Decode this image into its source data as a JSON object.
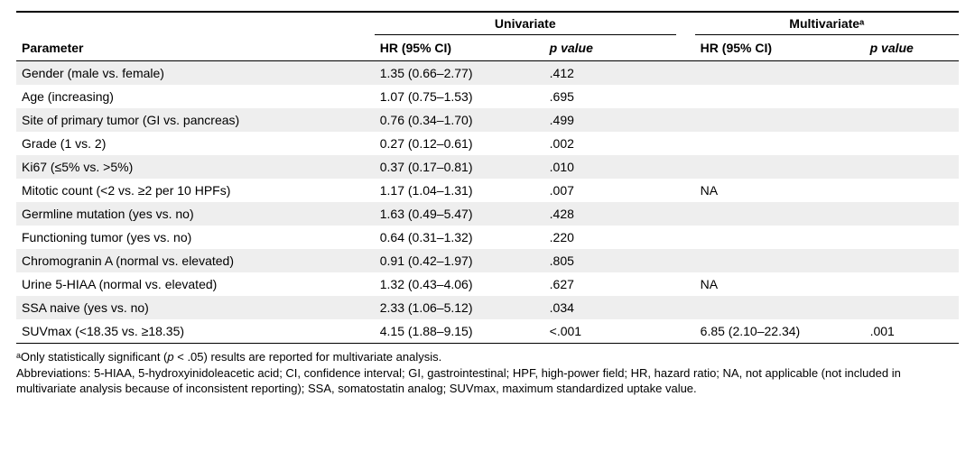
{
  "colors": {
    "row_odd_bg": "#eeeeee",
    "row_even_bg": "#ffffff",
    "border": "#000000",
    "text": "#000000"
  },
  "fontsize_pt": {
    "body": 14,
    "footnote": 13
  },
  "header": {
    "parameter": "Parameter",
    "groups": {
      "univariate": "Univariate",
      "multivariate": "Multivariateᵃ"
    },
    "sub": {
      "hr": "HR (95% CI)",
      "p_label": "p",
      "p_suffix": " value"
    }
  },
  "rows": [
    {
      "parameter": "Gender (male vs. female)",
      "uni_hr": "1.35 (0.66–2.77)",
      "uni_p": ".412",
      "multi_hr": "",
      "multi_p": ""
    },
    {
      "parameter": "Age (increasing)",
      "uni_hr": "1.07 (0.75–1.53)",
      "uni_p": ".695",
      "multi_hr": "",
      "multi_p": ""
    },
    {
      "parameter": "Site of primary tumor (GI vs. pancreas)",
      "uni_hr": "0.76 (0.34–1.70)",
      "uni_p": ".499",
      "multi_hr": "",
      "multi_p": ""
    },
    {
      "parameter": "Grade (1 vs. 2)",
      "uni_hr": "0.27 (0.12–0.61)",
      "uni_p": ".002",
      "multi_hr": "",
      "multi_p": ""
    },
    {
      "parameter": "Ki67 (≤5% vs. >5%)",
      "uni_hr": "0.37 (0.17–0.81)",
      "uni_p": ".010",
      "multi_hr": "",
      "multi_p": ""
    },
    {
      "parameter": "Mitotic count (<2 vs. ≥2 per 10 HPFs)",
      "uni_hr": "1.17 (1.04–1.31)",
      "uni_p": ".007",
      "multi_hr": "NA",
      "multi_p": ""
    },
    {
      "parameter": "Germline mutation (yes vs. no)",
      "uni_hr": "1.63 (0.49–5.47)",
      "uni_p": ".428",
      "multi_hr": "",
      "multi_p": ""
    },
    {
      "parameter": "Functioning tumor (yes vs. no)",
      "uni_hr": "0.64 (0.31–1.32)",
      "uni_p": ".220",
      "multi_hr": "",
      "multi_p": ""
    },
    {
      "parameter": "Chromogranin A (normal vs. elevated)",
      "uni_hr": "0.91 (0.42–1.97)",
      "uni_p": ".805",
      "multi_hr": "",
      "multi_p": ""
    },
    {
      "parameter": "Urine 5-HIAA (normal vs. elevated)",
      "uni_hr": "1.32 (0.43–4.06)",
      "uni_p": ".627",
      "multi_hr": "NA",
      "multi_p": ""
    },
    {
      "parameter": "SSA naive (yes vs. no)",
      "uni_hr": "2.33 (1.06–5.12)",
      "uni_p": ".034",
      "multi_hr": "",
      "multi_p": ""
    },
    {
      "parameter": "SUVmax (<18.35 vs. ≥18.35)",
      "uni_hr": "4.15 (1.88–9.15)",
      "uni_p": "<.001",
      "multi_hr": "6.85 (2.10–22.34)",
      "multi_p": ".001"
    }
  ],
  "footnote_a_prefix": "ᵃOnly statistically significant (",
  "footnote_a_italic1": "p",
  "footnote_a_mid": " < .05) results are reported for multivariate analysis.",
  "footnote_abbrev": "Abbreviations: 5-HIAA, 5-hydroxyinidoleacetic acid; CI, confidence interval; GI, gastrointestinal; HPF, high-power field; HR, hazard ratio; NA, not applicable (not included in multivariate analysis because of inconsistent reporting); SSA, somatostatin analog; SUVmax, maximum standardized uptake value."
}
